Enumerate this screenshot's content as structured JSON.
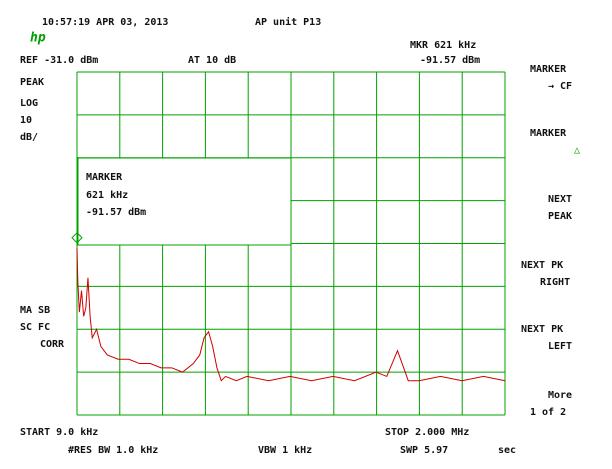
{
  "header": {
    "datetime": "10:57:19 APR 03, 2013",
    "unit": "AP unit P13",
    "logo": "hp",
    "marker_freq": "MKR 621 kHz",
    "ref_level": "REF -31.0 dBm",
    "attenuation": "AT 10 dB",
    "marker_level": "-91.57 dBm"
  },
  "left_labels": {
    "detector": "PEAK",
    "scale": "LOG",
    "div": "10",
    "div_unit": "dB/",
    "ma_sb": "MA SB",
    "sc_fc": "SC FC",
    "corr": "CORR"
  },
  "marker_box": {
    "title": "MARKER",
    "freq": "621 kHz",
    "level": "-91.57 dBm"
  },
  "softkeys": [
    [
      "MARKER",
      "→ CF"
    ],
    [
      "MARKER",
      "△"
    ],
    [
      "NEXT",
      "PEAK"
    ],
    [
      "NEXT PK",
      "RIGHT"
    ],
    [
      "NEXT PK",
      "LEFT"
    ],
    [
      "More",
      "1 of 2"
    ]
  ],
  "footer": {
    "start": "START 9.0 kHz",
    "stop": "STOP 2.000 MHz",
    "rbw": "#RES BW 1.0 kHz",
    "vbw": "VBW 1 kHz",
    "sweep": "SWP 5.97",
    "sweep_unit": "sec"
  },
  "chart_data": {
    "type": "line",
    "xlim": [
      0.009,
      2.0
    ],
    "ylim": [
      -111,
      -31
    ],
    "grid": true,
    "series": [
      {
        "color": "#d00000",
        "x": [
          0.009,
          0.013,
          0.02,
          0.03,
          0.04,
          0.05,
          0.06,
          0.07,
          0.08,
          0.1,
          0.12,
          0.15,
          0.2,
          0.25,
          0.3,
          0.35,
          0.4,
          0.45,
          0.5,
          0.55,
          0.58,
          0.6,
          0.621,
          0.64,
          0.66,
          0.68,
          0.7,
          0.75,
          0.8,
          0.9,
          1.0,
          1.1,
          1.2,
          1.3,
          1.4,
          1.45,
          1.5,
          1.55,
          1.6,
          1.7,
          1.8,
          1.9,
          2.0
        ],
        "values": [
          -72,
          -80,
          -87,
          -82,
          -88,
          -86,
          -79,
          -88,
          -93,
          -91,
          -95,
          -97,
          -98,
          -98,
          -99,
          -99,
          -100,
          -100,
          -101,
          -99,
          -97,
          -93,
          -91.57,
          -95,
          -100,
          -103,
          -102,
          -103,
          -102,
          -103,
          -102,
          -103,
          -102,
          -103,
          -101,
          -102,
          -96,
          -103,
          -103,
          -102,
          -103,
          -102,
          -103
        ]
      }
    ]
  }
}
